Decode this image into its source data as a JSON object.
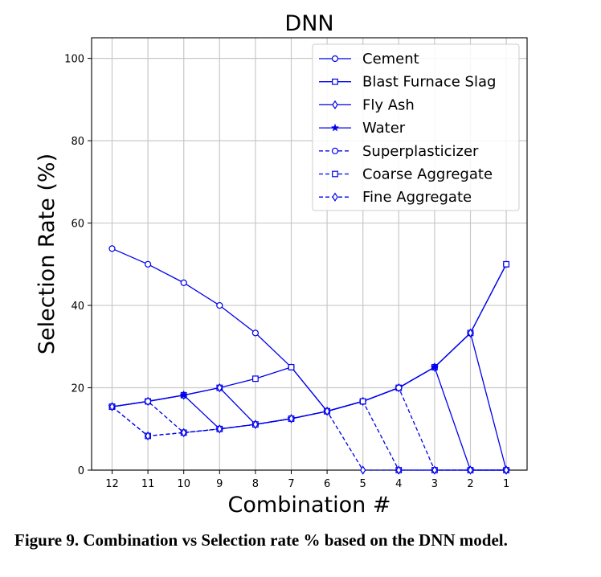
{
  "chart_data": {
    "type": "line",
    "title": "DNN",
    "xlabel": "Combination #",
    "ylabel": "Selection Rate (%)",
    "categories": [
      "12",
      "11",
      "10",
      "9",
      "8",
      "7",
      "6",
      "5",
      "4",
      "3",
      "2",
      "1"
    ],
    "ylim": [
      0,
      105
    ],
    "yticks": [
      0,
      20,
      40,
      60,
      80,
      100
    ],
    "grid": true,
    "legend_position": "top-right",
    "color": "#0000ee",
    "series": [
      {
        "name": "Cement",
        "marker": "circle",
        "linestyle": "solid",
        "values": [
          53.8,
          50.0,
          45.5,
          40.0,
          33.3,
          25.0,
          14.3,
          16.7,
          20.0,
          25.0,
          33.3,
          50.0
        ]
      },
      {
        "name": "Blast Furnace Slag",
        "marker": "square",
        "linestyle": "solid",
        "values": [
          15.4,
          16.7,
          18.2,
          20.0,
          22.2,
          25.0,
          14.3,
          16.7,
          20.0,
          25.0,
          33.3,
          50.0
        ]
      },
      {
        "name": "Fly Ash",
        "marker": "diamond",
        "linestyle": "solid",
        "values": [
          15.4,
          16.7,
          18.2,
          20.0,
          11.1,
          12.5,
          14.3,
          16.7,
          20.0,
          25.0,
          33.3,
          0.0
        ]
      },
      {
        "name": "Water",
        "marker": "star",
        "linestyle": "solid",
        "values": [
          15.4,
          16.7,
          18.2,
          10.0,
          11.1,
          12.5,
          14.3,
          16.7,
          20.0,
          25.0,
          0.0,
          0.0
        ]
      },
      {
        "name": "Superplasticizer",
        "marker": "circle",
        "linestyle": "dashed",
        "values": [
          15.4,
          16.7,
          9.1,
          10.0,
          11.1,
          12.5,
          14.3,
          16.7,
          20.0,
          0.0,
          0.0,
          0.0
        ]
      },
      {
        "name": "Coarse Aggregate",
        "marker": "square",
        "linestyle": "dashed",
        "values": [
          15.4,
          8.3,
          9.1,
          10.0,
          11.1,
          12.5,
          14.3,
          16.7,
          0.0,
          0.0,
          0.0,
          0.0
        ]
      },
      {
        "name": "Fine Aggregate",
        "marker": "diamond",
        "linestyle": "dashed",
        "values": [
          15.4,
          8.3,
          9.1,
          10.0,
          11.1,
          12.5,
          14.3,
          0.0,
          0.0,
          0.0,
          0.0,
          0.0
        ]
      }
    ]
  },
  "caption": "Figure 9. Combination vs Selection rate % based on the DNN model."
}
